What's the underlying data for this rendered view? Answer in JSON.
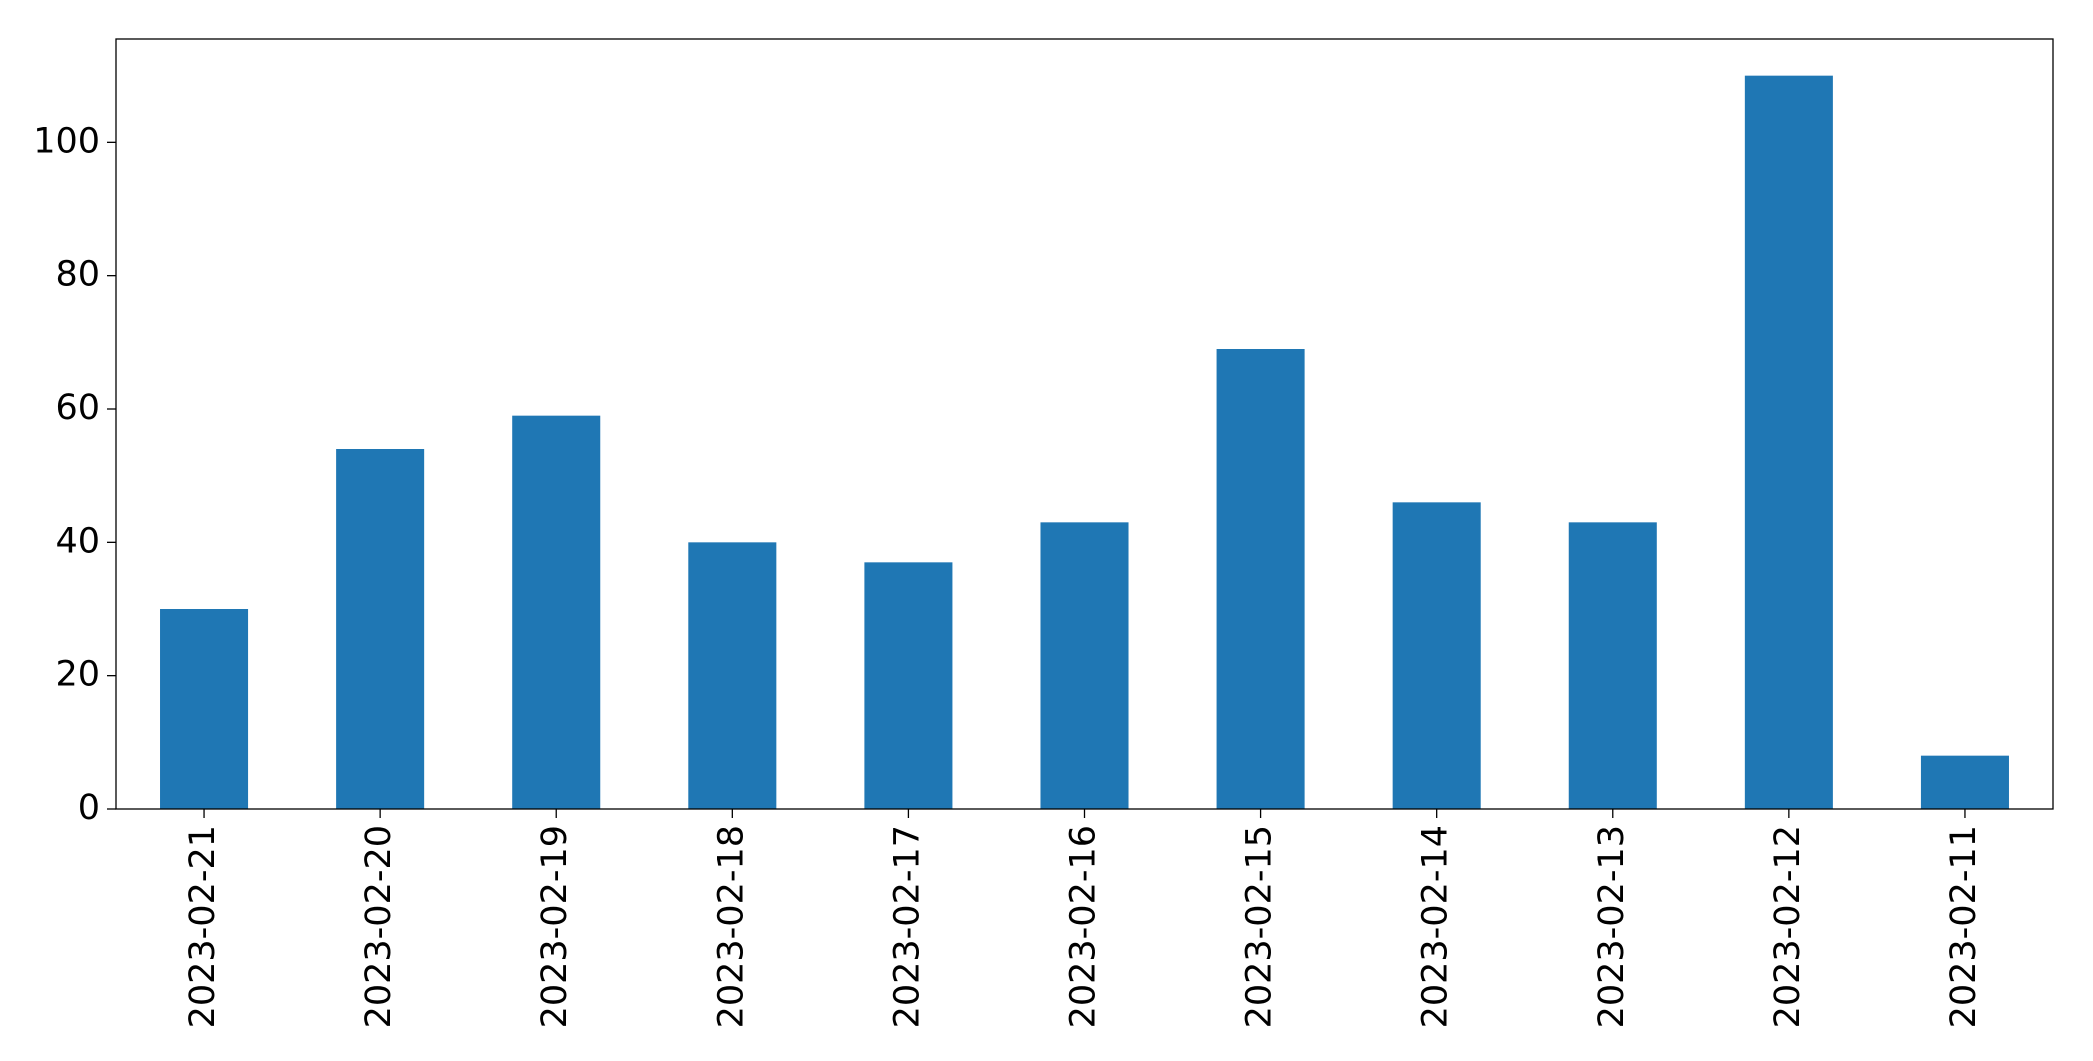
{
  "chart_data": {
    "type": "bar",
    "categories": [
      "2023-02-21",
      "2023-02-20",
      "2023-02-19",
      "2023-02-18",
      "2023-02-17",
      "2023-02-16",
      "2023-02-15",
      "2023-02-14",
      "2023-02-13",
      "2023-02-12",
      "2023-02-11"
    ],
    "values": [
      30,
      54,
      59,
      40,
      37,
      43,
      69,
      46,
      43,
      110,
      8
    ],
    "color": "#1f77b4",
    "ylim": [
      0,
      115.5
    ],
    "yticks": [
      0,
      20,
      40,
      60,
      80,
      100
    ],
    "grid": false
  }
}
